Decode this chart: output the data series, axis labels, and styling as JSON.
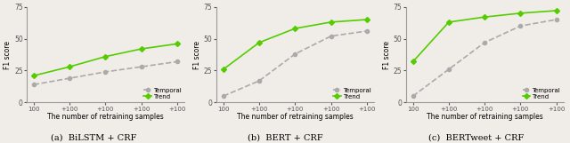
{
  "subplots": [
    {
      "title": "(a)  BiLSTM + CRF",
      "temporal": [
        14,
        19,
        24,
        28,
        32
      ],
      "trend": [
        21,
        28,
        36,
        42,
        46
      ],
      "ylim": [
        0,
        75
      ],
      "yticks": [
        0,
        25,
        50,
        75
      ]
    },
    {
      "title": "(b)  BERT + CRF",
      "temporal": [
        5,
        17,
        38,
        52,
        56
      ],
      "trend": [
        26,
        47,
        58,
        63,
        65
      ],
      "ylim": [
        0,
        75
      ],
      "yticks": [
        0,
        25,
        50,
        75
      ]
    },
    {
      "title": "(c)  BERTweet + CRF",
      "temporal": [
        5,
        26,
        47,
        60,
        65
      ],
      "trend": [
        32,
        63,
        67,
        70,
        72
      ],
      "ylim": [
        0,
        75
      ],
      "yticks": [
        0,
        25,
        50,
        75
      ]
    }
  ],
  "x_labels": [
    "100",
    "+100",
    "+100",
    "+100",
    "+100"
  ],
  "xlabel": "The number of retraining samples",
  "ylabel": "F1 score",
  "temporal_color": "#aaaaaa",
  "trend_color": "#55cc00",
  "temporal_marker": "o",
  "trend_marker": "D",
  "marker_size": 3,
  "line_width": 1.2,
  "legend_labels": [
    "Temporal",
    "Trend"
  ],
  "background_color": "#f0ede8"
}
